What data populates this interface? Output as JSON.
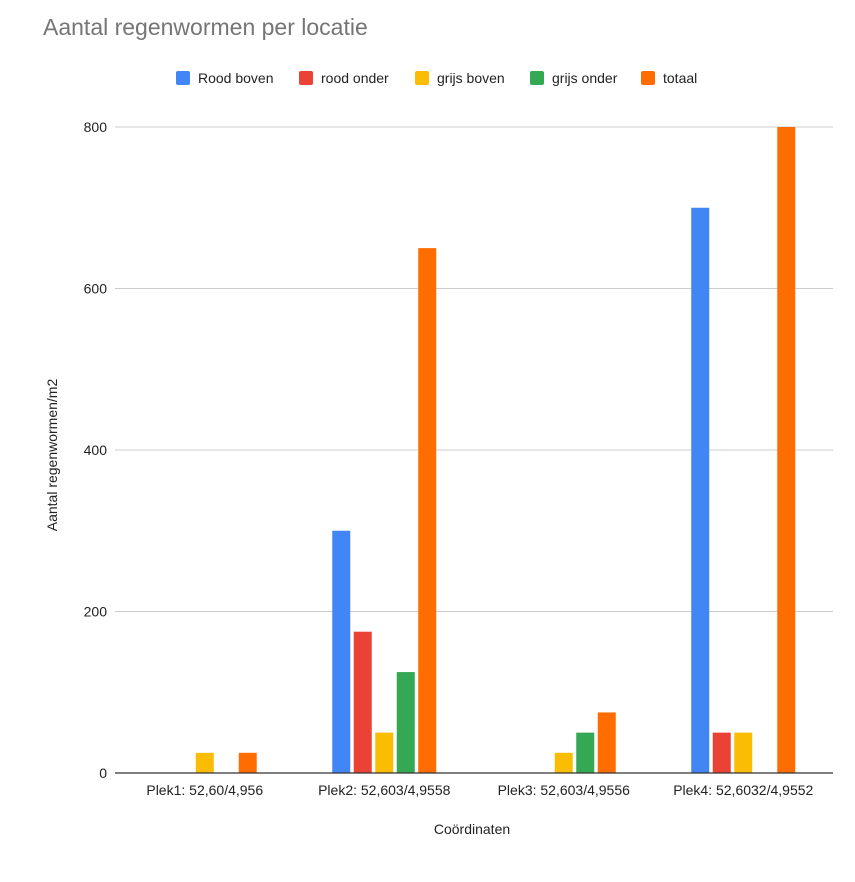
{
  "chart_data": {
    "type": "bar",
    "title": "Aantal regenwormen per locatie",
    "xlabel": "Coördinaten",
    "ylabel": "Aantal regenwormen/m2",
    "ylim": [
      0,
      800
    ],
    "yticks": [
      0,
      200,
      400,
      600,
      800
    ],
    "grid": true,
    "legend_position": "top",
    "categories": [
      "Plek1: 52,60/4,956",
      "Plek2: 52,603/4,9558",
      "Plek3: 52,603/4,9556",
      "Plek4: 52,6032/4,9552"
    ],
    "series": [
      {
        "name": "Rood boven",
        "color": "#4285f4",
        "values": [
          0,
          300,
          0,
          700
        ]
      },
      {
        "name": "rood onder",
        "color": "#ea4335",
        "values": [
          0,
          175,
          0,
          50
        ]
      },
      {
        "name": "grijs boven",
        "color": "#fbbc04",
        "values": [
          25,
          50,
          25,
          50
        ]
      },
      {
        "name": "grijs onder",
        "color": "#34a853",
        "values": [
          0,
          125,
          50,
          0
        ]
      },
      {
        "name": "totaal",
        "color": "#ff6d01",
        "values": [
          25,
          650,
          75,
          800
        ]
      }
    ]
  }
}
